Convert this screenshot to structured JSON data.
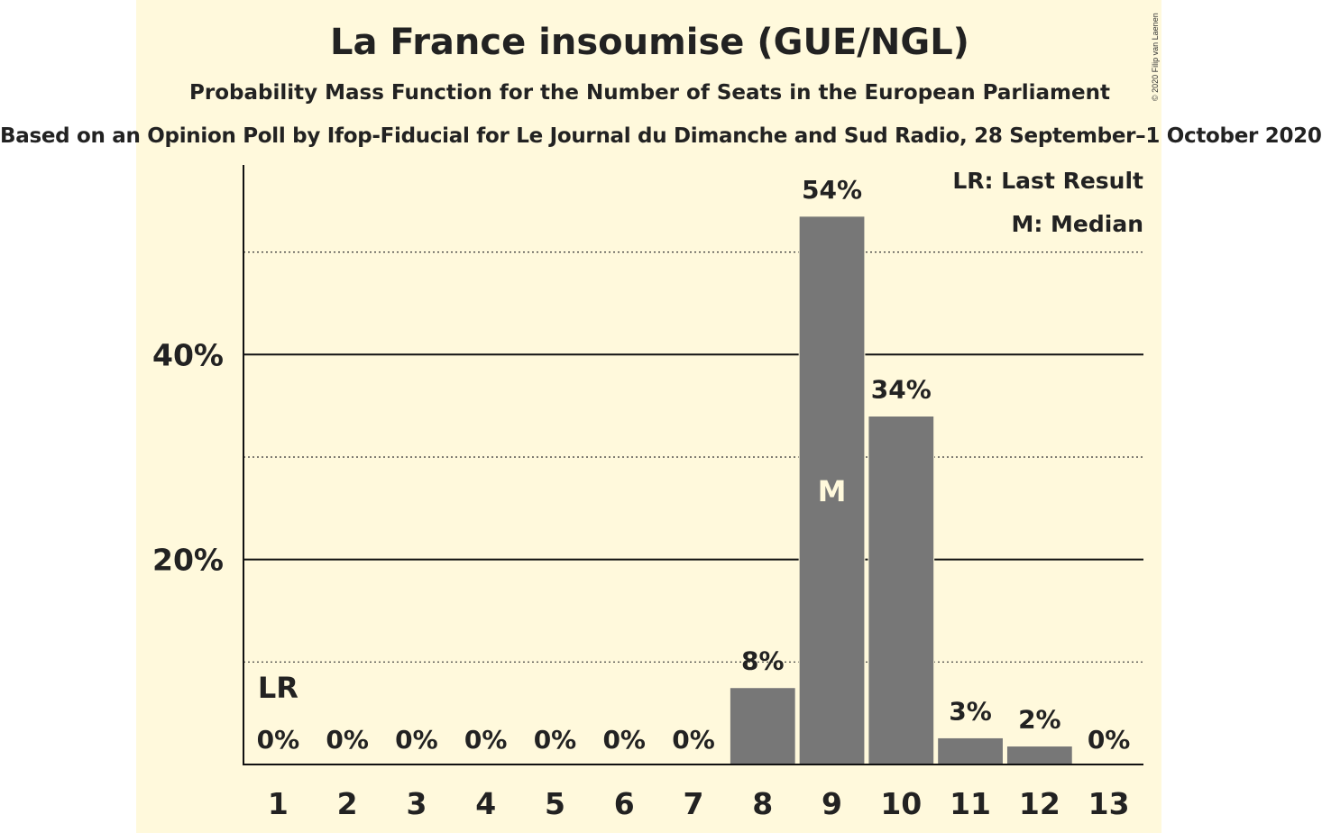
{
  "title": "La France insoumise (GUE/NGL)",
  "subtitle": "Probability Mass Function for the Number of Seats in the European Parliament",
  "source": "Based on an Opinion Poll by Ifop-Fiducial for Le Journal du Dimanche and Sud Radio, 28 September–1 October 2020",
  "copyright": "© 2020 Filip van Laenen",
  "legend": {
    "last_result": "LR: Last Result",
    "median": "M: Median"
  },
  "colors": {
    "background": "#fff9dc",
    "bar": "#777777",
    "text": "#222222"
  },
  "chart_data": {
    "type": "bar",
    "categories": [
      "1",
      "2",
      "3",
      "4",
      "5",
      "6",
      "7",
      "8",
      "9",
      "10",
      "11",
      "12",
      "13"
    ],
    "values": [
      0,
      0,
      0,
      0,
      0,
      0,
      0,
      7.5,
      53.5,
      34,
      2.6,
      1.8,
      0
    ],
    "data_labels": [
      "0%",
      "0%",
      "0%",
      "0%",
      "0%",
      "0%",
      "0%",
      "8%",
      "54%",
      "34%",
      "3%",
      "2%",
      "0%"
    ],
    "ylim": [
      0,
      58.5
    ],
    "yticks": [
      {
        "value": 20,
        "label": "20%"
      },
      {
        "value": 40,
        "label": "40%"
      }
    ],
    "minor_gridlines": [
      10,
      30,
      50
    ],
    "last_result": {
      "category": "1",
      "label": "LR"
    },
    "median": {
      "category": "9",
      "label": "M"
    },
    "legend_position": "top-right",
    "grid": true
  }
}
